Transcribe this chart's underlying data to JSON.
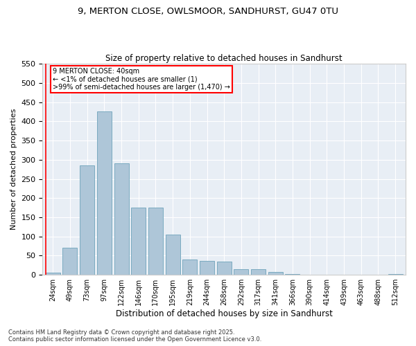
{
  "title_line1": "9, MERTON CLOSE, OWLSMOOR, SANDHURST, GU47 0TU",
  "title_line2": "Size of property relative to detached houses in Sandhurst",
  "xlabel": "Distribution of detached houses by size in Sandhurst",
  "ylabel": "Number of detached properties",
  "bar_color": "#aec6d8",
  "bar_edge_color": "#7aaac0",
  "bg_color": "#e8eef5",
  "annotation_line1": "9 MERTON CLOSE: 40sqm",
  "annotation_line2": "← <1% of detached houses are smaller (1)",
  "annotation_line3": ">99% of semi-detached houses are larger (1,470) →",
  "annotation_text_color": "black",
  "categories": [
    "24sqm",
    "49sqm",
    "73sqm",
    "97sqm",
    "122sqm",
    "146sqm",
    "170sqm",
    "195sqm",
    "219sqm",
    "244sqm",
    "268sqm",
    "292sqm",
    "317sqm",
    "341sqm",
    "366sqm",
    "390sqm",
    "414sqm",
    "439sqm",
    "463sqm",
    "488sqm",
    "512sqm"
  ],
  "values": [
    5,
    70,
    285,
    425,
    290,
    175,
    175,
    105,
    40,
    37,
    35,
    15,
    15,
    7,
    3,
    1,
    0,
    0,
    1,
    0,
    2
  ],
  "ylim": [
    0,
    550
  ],
  "yticks": [
    0,
    50,
    100,
    150,
    200,
    250,
    300,
    350,
    400,
    450,
    500,
    550
  ],
  "footnote": "Contains HM Land Registry data © Crown copyright and database right 2025.\nContains public sector information licensed under the Open Government Licence v3.0."
}
